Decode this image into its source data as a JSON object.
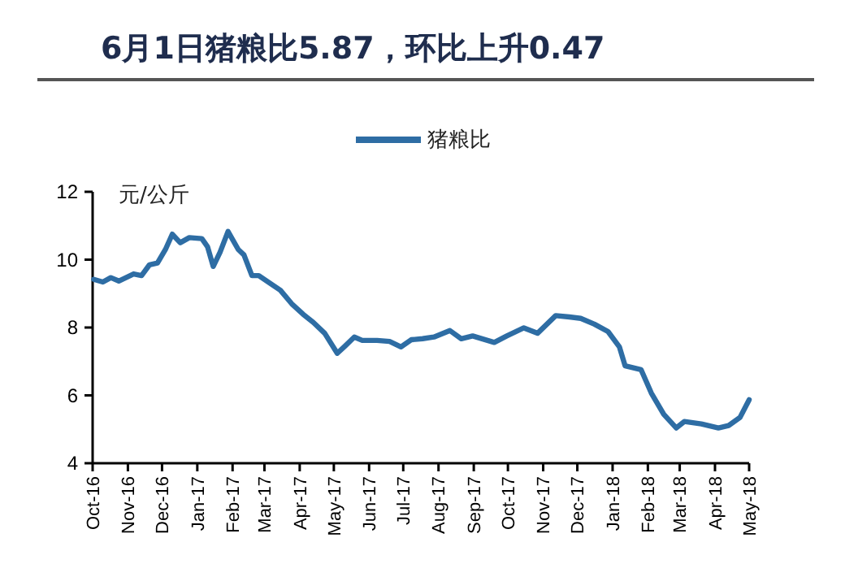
{
  "chart_data": {
    "type": "line",
    "title": "6月1日猪粮比5.87，环比上升0.47",
    "ylabel": "元/公斤",
    "legend": "top",
    "grid": false,
    "line_style": "solid",
    "marker": "none",
    "ylim": [
      4,
      12
    ],
    "yticks": [
      4,
      6,
      8,
      10,
      12
    ],
    "xlim": [
      "2016-10-01",
      "2018-05-01"
    ],
    "xticks": [
      {
        "value": "2016-10",
        "label": "Oct-16"
      },
      {
        "value": "2016-11",
        "label": "Nov-16"
      },
      {
        "value": "2016-12",
        "label": "Dec-16"
      },
      {
        "value": "2017-01",
        "label": "Jan-17"
      },
      {
        "value": "2017-02",
        "label": "Feb-17"
      },
      {
        "value": "2017-03",
        "label": "Mar-17"
      },
      {
        "value": "2017-04",
        "label": "Apr-17"
      },
      {
        "value": "2017-05",
        "label": "May-17"
      },
      {
        "value": "2017-06",
        "label": "Jun-17"
      },
      {
        "value": "2017-07",
        "label": "Jul-17"
      },
      {
        "value": "2017-08",
        "label": "Aug-17"
      },
      {
        "value": "2017-09",
        "label": "Sep-17"
      },
      {
        "value": "2017-10",
        "label": "Oct-17"
      },
      {
        "value": "2017-11",
        "label": "Nov-17"
      },
      {
        "value": "2017-12",
        "label": "Dec-17"
      },
      {
        "value": "2018-01",
        "label": "Jan-18"
      },
      {
        "value": "2018-02",
        "label": "Feb-18"
      },
      {
        "value": "2018-03",
        "label": "Mar-18"
      },
      {
        "value": "2018-04",
        "label": "Apr-18"
      },
      {
        "value": "2018-05",
        "label": "May-18"
      }
    ],
    "x": [
      "2016-10-02",
      "2016-10-10",
      "2016-10-17",
      "2016-10-24",
      "2016-11-06",
      "2016-11-13",
      "2016-11-20",
      "2016-11-27",
      "2016-12-04",
      "2016-12-10",
      "2016-12-17",
      "2016-12-25",
      "2017-01-05",
      "2017-01-10",
      "2017-01-15",
      "2017-01-21",
      "2017-01-28",
      "2017-02-06",
      "2017-02-11",
      "2017-02-18",
      "2017-02-24",
      "2017-03-06",
      "2017-03-15",
      "2017-03-25",
      "2017-04-04",
      "2017-04-13",
      "2017-04-23",
      "2017-05-04",
      "2017-05-11",
      "2017-05-19",
      "2017-05-26",
      "2017-06-08",
      "2017-06-19",
      "2017-06-29",
      "2017-07-08",
      "2017-07-18",
      "2017-07-28",
      "2017-08-11",
      "2017-08-21",
      "2017-08-31",
      "2017-09-19",
      "2017-09-30",
      "2017-10-15",
      "2017-10-27",
      "2017-11-12",
      "2017-11-24",
      "2017-12-04",
      "2017-12-16",
      "2017-12-28",
      "2018-01-07",
      "2018-01-12",
      "2018-01-26",
      "2018-02-04",
      "2018-02-15",
      "2018-02-26",
      "2018-03-05",
      "2018-03-20",
      "2018-04-04",
      "2018-04-13",
      "2018-04-23",
      "2018-05-01"
    ],
    "series": [
      {
        "name": "猪粮比",
        "color": "#2e6da4",
        "values": [
          9.42,
          9.34,
          9.47,
          9.37,
          9.58,
          9.53,
          9.85,
          9.9,
          10.3,
          10.75,
          10.5,
          10.65,
          10.62,
          10.38,
          9.8,
          10.22,
          10.83,
          10.3,
          10.14,
          9.53,
          9.53,
          9.3,
          9.1,
          8.7,
          8.39,
          8.15,
          7.83,
          7.24,
          7.46,
          7.72,
          7.62,
          7.62,
          7.59,
          7.43,
          7.64,
          7.67,
          7.72,
          7.91,
          7.67,
          7.75,
          7.56,
          7.75,
          7.99,
          7.83,
          8.35,
          8.31,
          8.27,
          8.1,
          7.88,
          7.43,
          6.87,
          6.76,
          6.07,
          5.44,
          5.04,
          5.23,
          5.16,
          5.04,
          5.11,
          5.35,
          5.87
        ]
      }
    ]
  }
}
